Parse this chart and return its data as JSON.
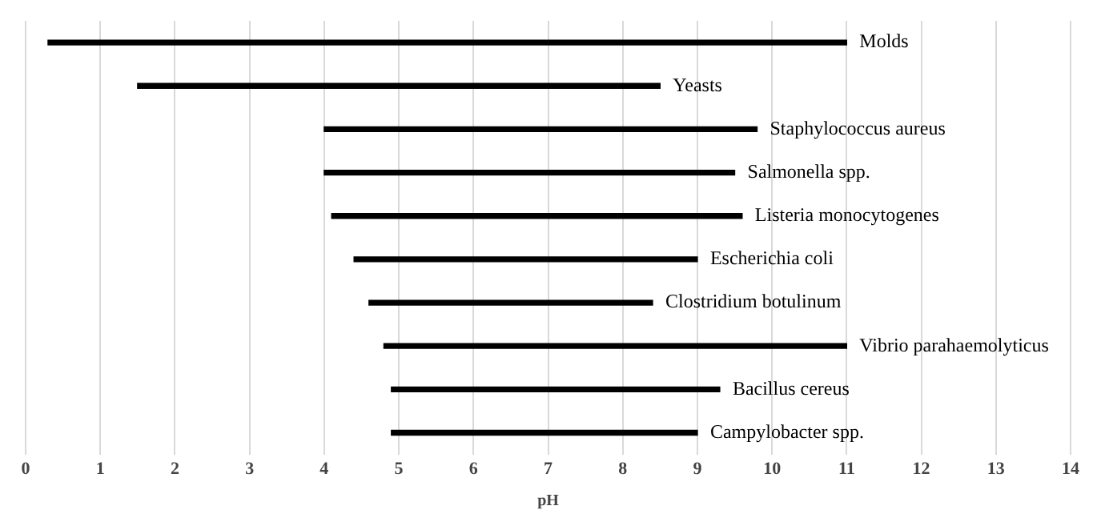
{
  "chart_data": {
    "type": "bar",
    "orientation": "horizontal",
    "xlabel": "pH",
    "categories": [
      "Molds",
      "Yeasts",
      "Staphylococcus aureus",
      "Salmonella spp.",
      "Listeria monocytogenes",
      "Escherichia coli",
      "Clostridium botulinum",
      "Vibrio parahaemolyticus",
      "Bacillus cereus",
      "Campylobacter spp."
    ],
    "base": [
      0.3,
      1.5,
      4.0,
      4.0,
      4.1,
      4.4,
      4.6,
      4.8,
      4.9,
      4.9
    ],
    "values": [
      10.7,
      7.0,
      5.8,
      5.5,
      5.5,
      4.6,
      3.8,
      6.2,
      4.4,
      4.1
    ],
    "color": "#000000",
    "xlim": [
      0,
      14
    ],
    "xticks": [
      0,
      1,
      2,
      3,
      4,
      5,
      6,
      7,
      8,
      9,
      10,
      11,
      12,
      13,
      14
    ],
    "grid": "x",
    "tick_labels": "x",
    "legend": false
  }
}
